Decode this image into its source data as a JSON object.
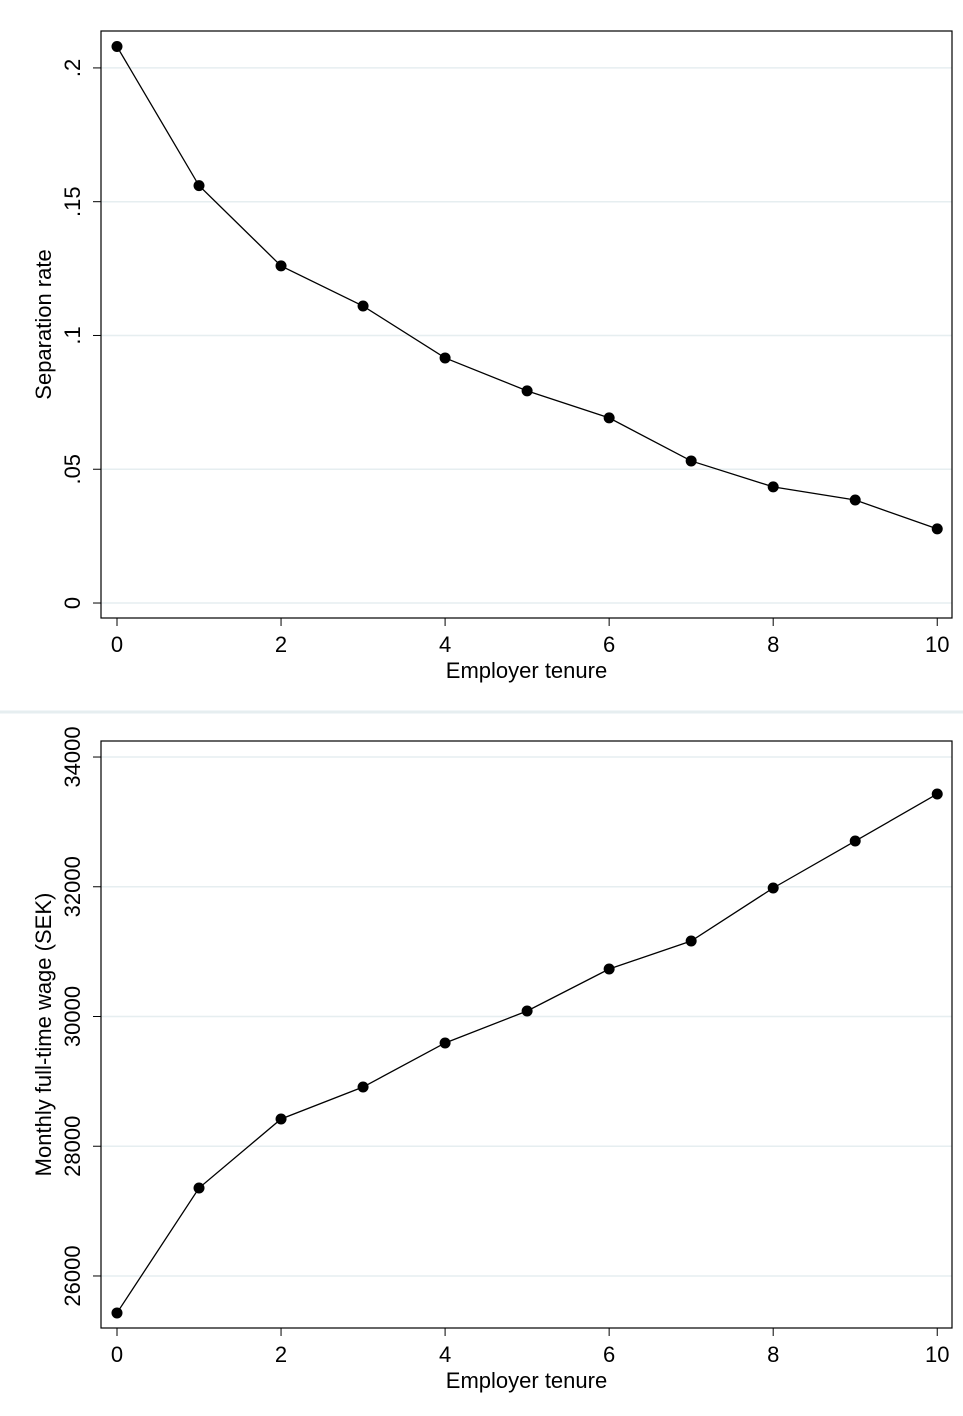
{
  "chart_data": [
    {
      "type": "line",
      "x_label": "Employer tenure",
      "y_label": "Separation rate",
      "x": [
        0,
        1,
        2,
        3,
        4,
        5,
        6,
        7,
        8,
        9,
        10
      ],
      "series": [
        {
          "color": "#000000",
          "values": [
            0.208,
            0.156,
            0.126,
            0.111,
            0.0916,
            0.0793,
            0.0692,
            0.0531,
            0.0434,
            0.0385,
            0.0277
          ]
        }
      ],
      "xlim": [
        -0.195,
        10.18
      ],
      "xticks": [
        0,
        2,
        4,
        6,
        8,
        10
      ],
      "ylim": [
        -0.0056,
        0.2138
      ],
      "yticks": [
        0,
        {
          "value": 0.05,
          "label": ".05"
        },
        {
          "value": 0.1,
          "label": ".1"
        },
        {
          "value": 0.15,
          "label": ".15"
        },
        {
          "value": 0.2,
          "label": ".2"
        }
      ],
      "grid": true
    },
    {
      "type": "line",
      "x_label": "Employer tenure",
      "y_label": "Monthly full-time wage (SEK)",
      "x": [
        0,
        1,
        2,
        3,
        4,
        5,
        6,
        7,
        8,
        9,
        10
      ],
      "series": [
        {
          "color": "#000000",
          "values": [
            25430,
            27356,
            28420,
            28913,
            29592,
            30085,
            30732,
            31164,
            31981,
            32705,
            33430
          ]
        }
      ],
      "xlim": [
        -0.195,
        10.18
      ],
      "xticks": [
        0,
        2,
        4,
        6,
        8,
        10
      ],
      "ylim": [
        25198,
        34247
      ],
      "yticks": [
        26000,
        28000,
        30000,
        32000,
        34000
      ],
      "grid": true
    }
  ]
}
